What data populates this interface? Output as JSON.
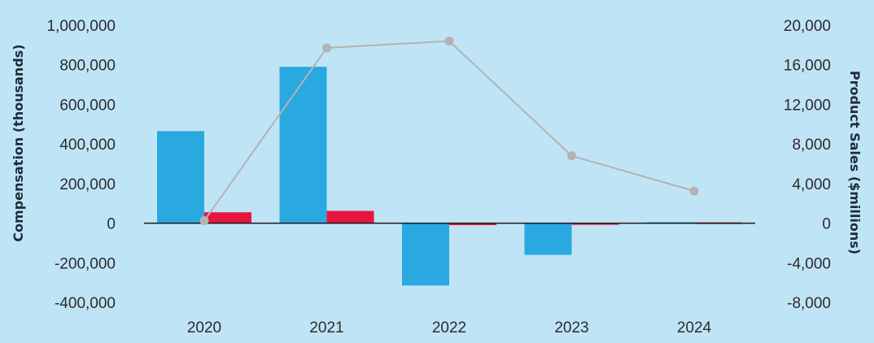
{
  "chart_data": {
    "type": "bar",
    "title": "",
    "categories": [
      "2020",
      "2021",
      "2022",
      "2023",
      "2024"
    ],
    "series": [
      {
        "values": [
          465000,
          790000,
          -315000,
          -160000,
          5000
        ],
        "axis": "left",
        "kind": "bar"
      },
      {
        "values": [
          55000,
          62000,
          -10000,
          -8000,
          4000
        ],
        "axis": "left",
        "kind": "bar"
      },
      {
        "values": [
          250,
          17700,
          18400,
          6800,
          3250
        ],
        "axis": "right",
        "kind": "line"
      }
    ],
    "ylabel": "Compensation (thousands)",
    "y2label": "Product Sales ($millions)",
    "ylim": [
      -400000,
      1000000
    ],
    "y2lim": [
      -8000,
      20000
    ],
    "yticks": [
      "1,000,000",
      "800,000",
      "600,000",
      "400,000",
      "200,000",
      "0",
      "-200,000",
      "-400,000"
    ],
    "y2ticks": [
      "20,000",
      "16,000",
      "12,000",
      "8,000",
      "4,000",
      "0",
      "-4,000",
      "-8,000"
    ],
    "grid": false,
    "legend": "none",
    "colors": {
      "background": "#bfe4f6",
      "bar1": "#2aa9e0",
      "bar2": "#e5173f",
      "line": "#b3b3b3",
      "zero_line": "#1a1a1a",
      "text": "#2b2b2b"
    }
  }
}
